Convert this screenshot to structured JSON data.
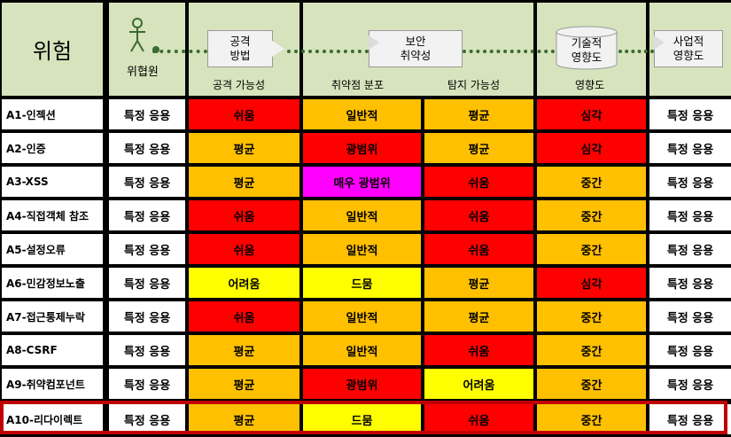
{
  "header": {
    "risk_title": "위험",
    "threat_agent_label": "위협원",
    "attack_vector_box": "공격\n방법",
    "security_weakness_box": "보안\n취약성",
    "technical_impact_box": "기술적\n영향도",
    "business_impact_box": "사업적\n영향도",
    "col_exploitability": "공격 가능성",
    "col_weakness_prevalence": "취약점 분포",
    "col_detectability": "탐지 가능성",
    "col_impact": "영향도"
  },
  "colors": {
    "red": "#ff0000",
    "orange": "#ffc000",
    "yellow": "#ffff00",
    "magenta": "#ff00ff",
    "header_green": "#d6e3bc",
    "highlight_border": "#c00000"
  },
  "rows": [
    {
      "risk": "A1-인젝션",
      "agent": "특정 응용",
      "exploit": "쉬움",
      "exploit_color": "red",
      "prevalence": "일반적",
      "prevalence_color": "orange",
      "detect": "평균",
      "detect_color": "orange",
      "impact": "심각",
      "impact_color": "red",
      "business": "특정 응용"
    },
    {
      "risk": "A2-인증",
      "agent": "특정 응용",
      "exploit": "평균",
      "exploit_color": "orange",
      "prevalence": "광범위",
      "prevalence_color": "red",
      "detect": "평균",
      "detect_color": "orange",
      "impact": "심각",
      "impact_color": "red",
      "business": "특정 응용"
    },
    {
      "risk": "A3-XSS",
      "agent": "특정 응용",
      "exploit": "평균",
      "exploit_color": "orange",
      "prevalence": "매우 광범위",
      "prevalence_color": "magenta",
      "detect": "쉬움",
      "detect_color": "red",
      "impact": "중간",
      "impact_color": "orange",
      "business": "특정 응용"
    },
    {
      "risk": "A4-직접객체 참조",
      "agent": "특정 응용",
      "exploit": "쉬움",
      "exploit_color": "red",
      "prevalence": "일반적",
      "prevalence_color": "orange",
      "detect": "쉬움",
      "detect_color": "red",
      "impact": "중간",
      "impact_color": "orange",
      "business": "특정 응용"
    },
    {
      "risk": "A5-설정오류",
      "agent": "특정 응용",
      "exploit": "쉬움",
      "exploit_color": "red",
      "prevalence": "일반적",
      "prevalence_color": "orange",
      "detect": "쉬움",
      "detect_color": "red",
      "impact": "중간",
      "impact_color": "orange",
      "business": "특정 응용"
    },
    {
      "risk": "A6-민감정보노출",
      "agent": "특정 응용",
      "exploit": "어려움",
      "exploit_color": "yellow",
      "prevalence": "드뭄",
      "prevalence_color": "yellow",
      "detect": "평균",
      "detect_color": "orange",
      "impact": "심각",
      "impact_color": "red",
      "business": "특정 응용"
    },
    {
      "risk": "A7-접근통제누락",
      "agent": "특정 응용",
      "exploit": "쉬움",
      "exploit_color": "red",
      "prevalence": "일반적",
      "prevalence_color": "orange",
      "detect": "평균",
      "detect_color": "orange",
      "impact": "중간",
      "impact_color": "orange",
      "business": "특정 응용"
    },
    {
      "risk": "A8-CSRF",
      "agent": "특정 응용",
      "exploit": "평균",
      "exploit_color": "orange",
      "prevalence": "일반적",
      "prevalence_color": "orange",
      "detect": "쉬움",
      "detect_color": "red",
      "impact": "중간",
      "impact_color": "orange",
      "business": "특정 응용"
    },
    {
      "risk": "A9-취약컴포넌트",
      "agent": "특정 응용",
      "exploit": "평균",
      "exploit_color": "orange",
      "prevalence": "광범위",
      "prevalence_color": "red",
      "detect": "어려움",
      "detect_color": "yellow",
      "impact": "중간",
      "impact_color": "orange",
      "business": "특정 응용"
    },
    {
      "risk": "A10-리다이렉트",
      "agent": "특정 응용",
      "exploit": "평균",
      "exploit_color": "orange",
      "prevalence": "드뭄",
      "prevalence_color": "yellow",
      "detect": "쉬움",
      "detect_color": "red",
      "impact": "중간",
      "impact_color": "orange",
      "business": "특정 응용"
    }
  ]
}
